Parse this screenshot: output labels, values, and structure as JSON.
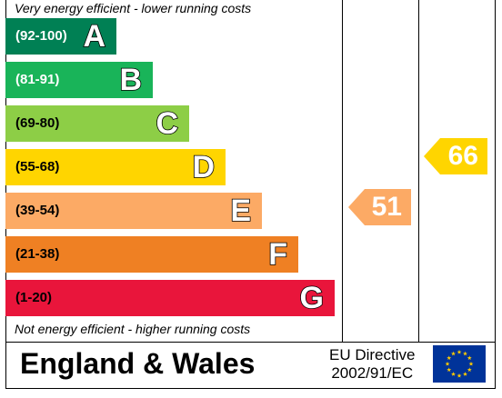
{
  "top_note": "Very energy efficient - lower running costs",
  "bottom_note": "Not energy efficient - higher running costs",
  "bands": [
    {
      "range": "(92-100)",
      "letter": "A",
      "color": "#008054",
      "range_color": "#ffffff"
    },
    {
      "range": "(81-91)",
      "letter": "B",
      "color": "#19b459",
      "range_color": "#ffffff"
    },
    {
      "range": "(69-80)",
      "letter": "C",
      "color": "#8dce46",
      "range_color": "#000000"
    },
    {
      "range": "(55-68)",
      "letter": "D",
      "color": "#ffd500",
      "range_color": "#000000"
    },
    {
      "range": "(39-54)",
      "letter": "E",
      "color": "#fcaa65",
      "range_color": "#000000"
    },
    {
      "range": "(21-38)",
      "letter": "F",
      "color": "#ef8023",
      "range_color": "#000000"
    },
    {
      "range": "(1-20)",
      "letter": "G",
      "color": "#e9153b",
      "range_color": "#000000"
    }
  ],
  "current": {
    "value": "51",
    "color": "#fcaa65"
  },
  "potential": {
    "value": "66",
    "color": "#ffd500"
  },
  "footer": {
    "region": "England & Wales",
    "directive_line1": "EU Directive",
    "directive_line2": "2002/91/EC",
    "flag_color": "#003399",
    "star_color": "#ffcc00",
    "flag_icon": "eu-flag-icon"
  }
}
